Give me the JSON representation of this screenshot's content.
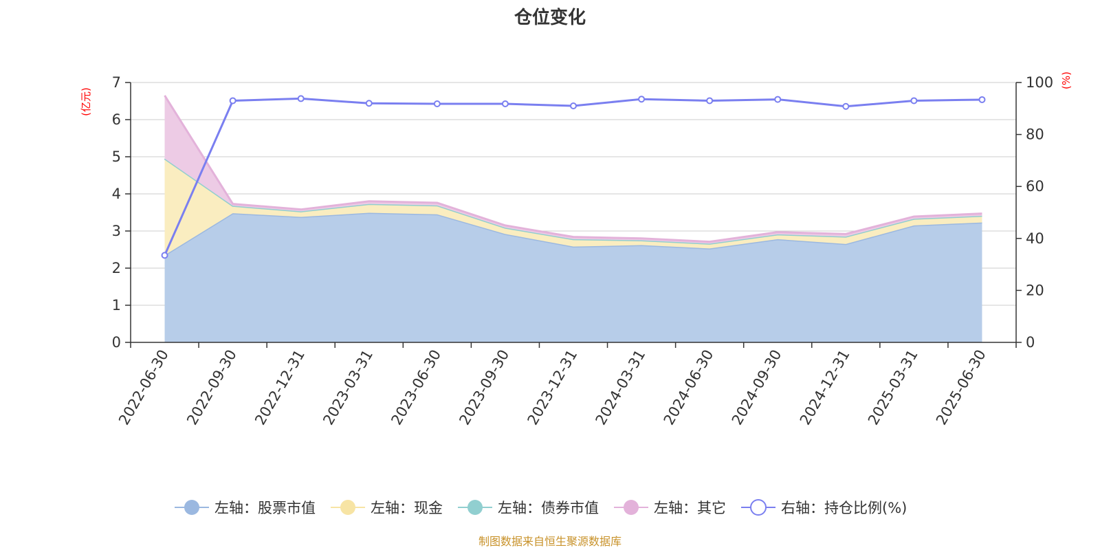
{
  "chart_data": {
    "type": "area",
    "title": "仓位变化",
    "left_axis_unit": "(亿元)",
    "right_axis_unit": "(%)",
    "categories": [
      "2022-06-30",
      "2022-09-30",
      "2022-12-31",
      "2023-03-31",
      "2023-06-30",
      "2023-09-30",
      "2023-12-31",
      "2024-03-31",
      "2024-06-30",
      "2024-09-30",
      "2024-12-31",
      "2025-03-31",
      "2025-06-30"
    ],
    "left_ylim": [
      0,
      7
    ],
    "left_yticks": [
      "0",
      "1",
      "2",
      "3",
      "4",
      "5",
      "6",
      "7"
    ],
    "right_ylim": [
      0,
      100
    ],
    "right_yticks": [
      "0",
      "20",
      "40",
      "60",
      "80",
      "100"
    ],
    "grid": true,
    "legend_position": "bottom",
    "series": [
      {
        "name": "左轴：股票市值",
        "axis": "left",
        "stack": true,
        "color": "#9bb8e0",
        "fill": "#b7cde9",
        "values": [
          2.35,
          3.48,
          3.38,
          3.49,
          3.45,
          2.92,
          2.58,
          2.62,
          2.53,
          2.78,
          2.65,
          3.15,
          3.23
        ]
      },
      {
        "name": "左轴：现金",
        "axis": "left",
        "stack": true,
        "color": "#f7e4a4",
        "fill": "#faedc0",
        "values": [
          2.6,
          0.2,
          0.15,
          0.24,
          0.24,
          0.17,
          0.2,
          0.13,
          0.13,
          0.13,
          0.2,
          0.18,
          0.18
        ]
      },
      {
        "name": "左轴：债券市值",
        "axis": "left",
        "stack": true,
        "color": "#91cfd0",
        "fill": "#b5e0e0",
        "values": [
          0,
          0,
          0,
          0,
          0,
          0,
          0,
          0,
          0,
          0,
          0,
          0,
          0
        ]
      },
      {
        "name": "左轴：其它",
        "axis": "left",
        "stack": true,
        "color": "#e3b2da",
        "fill": "#edcbe5",
        "values": [
          1.7,
          0.05,
          0.05,
          0.07,
          0.07,
          0.06,
          0.06,
          0.05,
          0.05,
          0.06,
          0.07,
          0.06,
          0.06
        ]
      },
      {
        "name": "右轴：持仓比例(%)",
        "axis": "right",
        "stack": false,
        "color": "#7a7ff0",
        "values": [
          33.5,
          93,
          93.8,
          92,
          91.8,
          91.8,
          91,
          93.6,
          93,
          93.5,
          90.8,
          93,
          93.4
        ]
      }
    ],
    "source_note": "制图数据来自恒生聚源数据库"
  }
}
